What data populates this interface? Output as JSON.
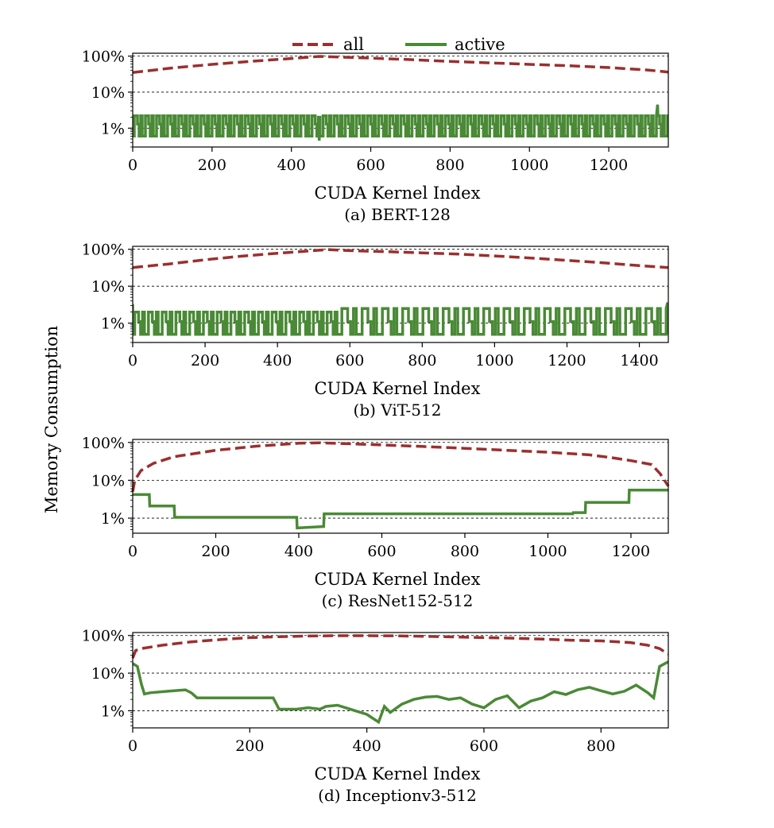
{
  "figure": {
    "ylabel": "Memory Consumption",
    "legend": {
      "placement": "top-center",
      "entries": [
        {
          "name": "all",
          "style": "dashed",
          "color": "#9b2f2f"
        },
        {
          "name": "active",
          "style": "solid",
          "color": "#4a8a36"
        }
      ]
    }
  },
  "chart_data": [
    {
      "type": "line",
      "caption": "(a) BERT-128",
      "xlabel": "CUDA Kernel Index",
      "ylabel": "Memory Consumption",
      "yscale": "log",
      "ylim": [
        0.3,
        120
      ],
      "yticks": [
        1,
        10,
        100
      ],
      "ytick_labels": [
        "1%",
        "10%",
        "100%"
      ],
      "xlim": [
        0,
        1350
      ],
      "xticks": [
        0,
        200,
        400,
        600,
        800,
        1000,
        1200
      ],
      "grid": "horizontal-dashed",
      "active_pattern": {
        "kind": "periodic",
        "period": 28,
        "low": 0.6,
        "high": 2.2,
        "mid": 1.3
      },
      "active_extras": [
        {
          "x": 470,
          "y": 0.45
        },
        {
          "x": 1323,
          "y": 4.5
        }
      ],
      "series": [
        {
          "name": "all",
          "x": [
            0,
            100,
            200,
            300,
            400,
            470,
            600,
            700,
            800,
            900,
            1000,
            1100,
            1200,
            1300,
            1350
          ],
          "values": [
            35,
            47,
            59,
            72,
            86,
            98,
            88,
            80,
            71,
            65,
            59,
            54,
            48,
            41,
            36
          ]
        },
        {
          "name": "active",
          "x": [
            0,
            1350
          ],
          "values": [
            0.6,
            0.75
          ]
        }
      ]
    },
    {
      "type": "line",
      "caption": "(b) ViT-512",
      "xlabel": "CUDA Kernel Index",
      "ylabel": "Memory Consumption",
      "yscale": "log",
      "ylim": [
        0.3,
        120
      ],
      "yticks": [
        1,
        10,
        100
      ],
      "ytick_labels": [
        "1%",
        "10%",
        "100%"
      ],
      "xlim": [
        0,
        1480
      ],
      "xticks": [
        0,
        200,
        400,
        600,
        800,
        1000,
        1200,
        1400
      ],
      "grid": "horizontal-dashed",
      "active_pattern": {
        "kind": "periodic",
        "period": 38,
        "low": 0.5,
        "high": 2.0,
        "mid": 1.1,
        "period2": 56,
        "high2": 2.5,
        "switch_x": 540
      },
      "active_extras": [
        {
          "x": 0,
          "y": 3.3
        },
        {
          "x": 1478,
          "y": 3.6
        }
      ],
      "series": [
        {
          "name": "all",
          "x": [
            0,
            100,
            200,
            300,
            400,
            500,
            540,
            600,
            700,
            800,
            900,
            1000,
            1100,
            1200,
            1300,
            1400,
            1480
          ],
          "values": [
            32,
            40,
            52,
            65,
            78,
            92,
            98,
            92,
            86,
            80,
            74,
            66,
            58,
            50,
            43,
            36,
            32
          ]
        },
        {
          "name": "active",
          "x": [
            0,
            1480
          ],
          "values": [
            0.5,
            0.8
          ]
        }
      ]
    },
    {
      "type": "line",
      "caption": "(c) ResNet152-512",
      "xlabel": "CUDA Kernel Index",
      "ylabel": "Memory Consumption",
      "yscale": "log",
      "ylim": [
        0.4,
        120
      ],
      "yticks": [
        1,
        10,
        100
      ],
      "ytick_labels": [
        "1%",
        "10%",
        "100%"
      ],
      "xlim": [
        0,
        1290
      ],
      "xticks": [
        0,
        200,
        400,
        600,
        800,
        1000,
        1200
      ],
      "grid": "horizontal-dashed",
      "active_pattern": {
        "kind": "segments"
      },
      "series": [
        {
          "name": "all",
          "x": [
            0,
            5,
            20,
            50,
            100,
            200,
            300,
            400,
            450,
            500,
            600,
            700,
            800,
            900,
            1000,
            1100,
            1150,
            1200,
            1250,
            1270,
            1290
          ],
          "values": [
            5,
            10,
            18,
            28,
            42,
            62,
            80,
            95,
            98,
            94,
            86,
            78,
            70,
            62,
            55,
            47,
            40,
            33,
            26,
            15,
            7
          ]
        },
        {
          "name": "active",
          "x": [
            0,
            40,
            41,
            100,
            101,
            395,
            396,
            460,
            461,
            1060,
            1061,
            1090,
            1091,
            1195,
            1196,
            1290
          ],
          "values": [
            4.2,
            4.2,
            2.1,
            2.1,
            1.05,
            1.05,
            0.55,
            0.6,
            1.3,
            1.3,
            1.4,
            1.4,
            2.6,
            2.6,
            5.5,
            5.5
          ]
        }
      ]
    },
    {
      "type": "line",
      "caption": "(d) Inceptionv3-512",
      "xlabel": "CUDA Kernel Index",
      "ylabel": "Memory Consumption",
      "yscale": "log",
      "ylim": [
        0.35,
        120
      ],
      "yticks": [
        1,
        10,
        100
      ],
      "ytick_labels": [
        "1%",
        "10%",
        "100%"
      ],
      "xlim": [
        0,
        915
      ],
      "xticks": [
        0,
        200,
        400,
        600,
        800
      ],
      "grid": "horizontal-dashed",
      "active_pattern": {
        "kind": "segments"
      },
      "series": [
        {
          "name": "all",
          "x": [
            0,
            5,
            15,
            50,
            100,
            150,
            200,
            250,
            300,
            350,
            400,
            450,
            500,
            550,
            600,
            650,
            700,
            750,
            800,
            850,
            880,
            900,
            915
          ],
          "values": [
            25,
            40,
            45,
            55,
            68,
            78,
            88,
            93,
            97,
            99,
            99,
            98,
            95,
            92,
            88,
            85,
            80,
            75,
            72,
            65,
            55,
            45,
            32
          ]
        },
        {
          "name": "active",
          "x": [
            0,
            8,
            15,
            20,
            30,
            60,
            90,
            100,
            110,
            150,
            200,
            240,
            250,
            280,
            300,
            320,
            330,
            350,
            380,
            400,
            420,
            430,
            440,
            460,
            480,
            500,
            520,
            540,
            560,
            580,
            600,
            620,
            640,
            660,
            680,
            700,
            720,
            740,
            760,
            780,
            800,
            820,
            840,
            860,
            880,
            890,
            900,
            915
          ],
          "values": [
            18,
            15,
            5,
            2.8,
            3.0,
            3.3,
            3.6,
            3.0,
            2.2,
            2.2,
            2.2,
            2.2,
            1.1,
            1.1,
            1.2,
            1.1,
            1.3,
            1.4,
            1.0,
            0.8,
            0.5,
            1.3,
            0.9,
            1.5,
            2.0,
            2.3,
            2.4,
            2.0,
            2.2,
            1.5,
            1.2,
            2.0,
            2.5,
            1.2,
            1.8,
            2.2,
            3.2,
            2.7,
            3.6,
            4.2,
            3.4,
            2.8,
            3.3,
            4.8,
            3.0,
            2.2,
            15,
            20
          ]
        }
      ]
    }
  ]
}
